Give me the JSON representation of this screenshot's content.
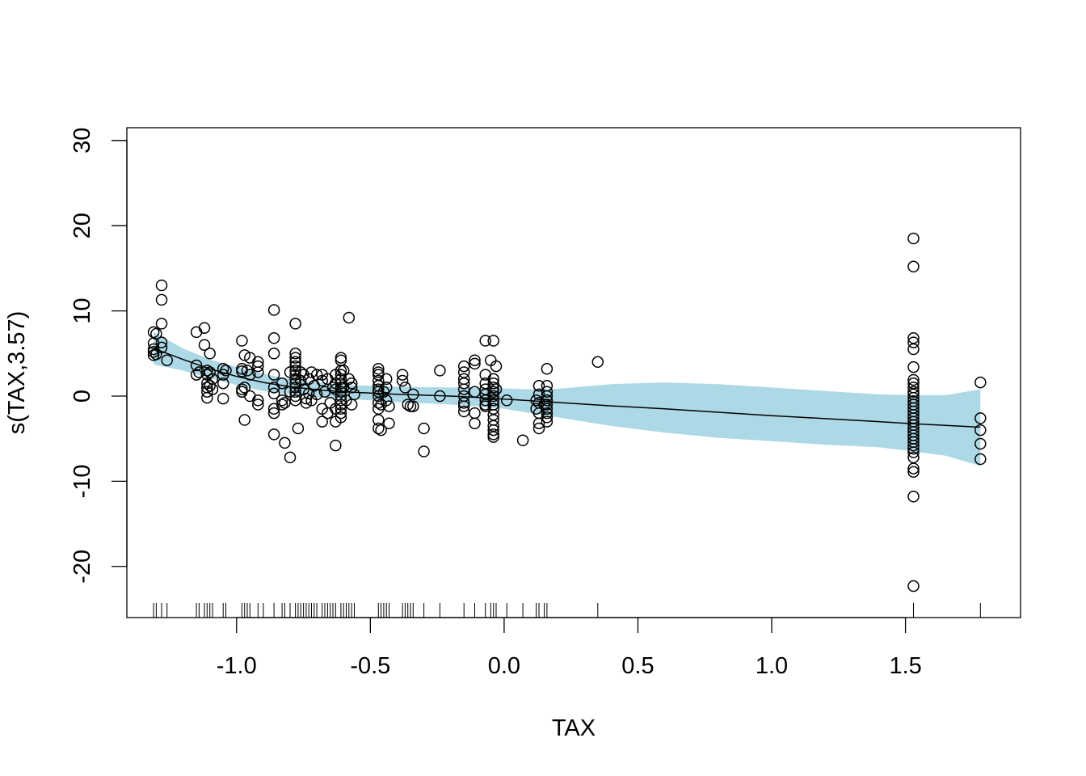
{
  "chart_data": {
    "type": "scatter",
    "title": "",
    "xlabel": "TAX",
    "ylabel": "s(TAX,3.57)",
    "xlim": [
      -1.41,
      1.93
    ],
    "ylim": [
      -26,
      31.5
    ],
    "xticks": [
      -1.0,
      -0.5,
      0.0,
      0.5,
      1.0,
      1.5
    ],
    "xtick_labels": [
      "-1.0",
      "-0.5",
      "0.0",
      "0.5",
      "1.0",
      "1.5"
    ],
    "yticks": [
      -20,
      -10,
      0,
      10,
      20,
      30
    ],
    "ytick_labels": [
      "-20",
      "-10",
      "0",
      "10",
      "20",
      "30"
    ],
    "grid": false,
    "colors": {
      "band": "#add8e6",
      "line": "#000000",
      "points": "#000000"
    },
    "smooth": {
      "x": [
        -1.31,
        -1.2,
        -1.1,
        -1.0,
        -0.9,
        -0.8,
        -0.7,
        -0.6,
        -0.5,
        -0.4,
        -0.3,
        -0.2,
        -0.1,
        0.0,
        0.1,
        0.2,
        0.4,
        0.6,
        0.8,
        1.0,
        1.2,
        1.4,
        1.53,
        1.65,
        1.78
      ],
      "fit": [
        5.6,
        4.3,
        3.2,
        2.3,
        1.6,
        1.1,
        0.75,
        0.5,
        0.35,
        0.22,
        0.1,
        0.0,
        -0.15,
        -0.35,
        -0.55,
        -0.75,
        -1.15,
        -1.5,
        -1.9,
        -2.3,
        -2.65,
        -3.0,
        -3.25,
        -3.45,
        -3.65
      ],
      "upper": [
        7.5,
        5.6,
        4.3,
        3.4,
        2.6,
        2.0,
        1.6,
        1.3,
        1.2,
        1.1,
        1.05,
        1.0,
        0.95,
        0.9,
        0.8,
        0.85,
        1.4,
        1.6,
        1.4,
        1.0,
        0.6,
        0.2,
        0.1,
        0.1,
        0.8
      ],
      "lower": [
        3.7,
        3.0,
        2.1,
        1.3,
        0.6,
        0.2,
        -0.1,
        -0.3,
        -0.5,
        -0.7,
        -0.85,
        -1.0,
        -1.2,
        -1.5,
        -2.0,
        -2.5,
        -3.5,
        -4.3,
        -4.9,
        -5.3,
        -5.7,
        -6.0,
        -6.5,
        -7.0,
        -8.2
      ]
    },
    "points": [
      [
        -1.31,
        5.5
      ],
      [
        -1.31,
        4.8
      ],
      [
        -1.31,
        5.2
      ],
      [
        -1.31,
        6.2
      ],
      [
        -1.31,
        7.5
      ],
      [
        -1.3,
        7.3
      ],
      [
        -1.3,
        4.9
      ],
      [
        -1.28,
        13.0
      ],
      [
        -1.28,
        11.3
      ],
      [
        -1.28,
        8.5
      ],
      [
        -1.28,
        6.3
      ],
      [
        -1.28,
        5.7
      ],
      [
        -1.26,
        4.2
      ],
      [
        -1.15,
        7.5
      ],
      [
        -1.15,
        3.6
      ],
      [
        -1.15,
        2.5
      ],
      [
        -1.14,
        2.8
      ],
      [
        -1.12,
        8.0
      ],
      [
        -1.12,
        6.0
      ],
      [
        -1.11,
        3.0
      ],
      [
        -1.11,
        2.5
      ],
      [
        -1.11,
        1.5
      ],
      [
        -1.11,
        1.0
      ],
      [
        -1.11,
        0.5
      ],
      [
        -1.11,
        -0.2
      ],
      [
        -1.1,
        5.0
      ],
      [
        -1.1,
        2.8
      ],
      [
        -1.1,
        1.2
      ],
      [
        -1.09,
        2.0
      ],
      [
        -1.09,
        0.8
      ],
      [
        -1.05,
        3.2
      ],
      [
        -1.05,
        2.5
      ],
      [
        -1.05,
        1.5
      ],
      [
        -1.05,
        -0.3
      ],
      [
        -1.04,
        3.0
      ],
      [
        -0.98,
        6.5
      ],
      [
        -0.98,
        3.2
      ],
      [
        -0.98,
        2.9
      ],
      [
        -0.98,
        0.5
      ],
      [
        -0.98,
        0.8
      ],
      [
        -0.97,
        4.8
      ],
      [
        -0.97,
        1.0
      ],
      [
        -0.97,
        -2.8
      ],
      [
        -0.96,
        3.0
      ],
      [
        -0.95,
        4.5
      ],
      [
        -0.95,
        2.5
      ],
      [
        -0.95,
        0.0
      ],
      [
        -0.92,
        4.0
      ],
      [
        -0.92,
        3.5
      ],
      [
        -0.92,
        2.8
      ],
      [
        -0.92,
        -0.5
      ],
      [
        -0.92,
        -1.0
      ],
      [
        -0.86,
        10.1
      ],
      [
        -0.86,
        6.8
      ],
      [
        -0.86,
        5.0
      ],
      [
        -0.86,
        2.5
      ],
      [
        -0.86,
        1.0
      ],
      [
        -0.86,
        0.3
      ],
      [
        -0.86,
        -1.5
      ],
      [
        -0.86,
        -2.0
      ],
      [
        -0.86,
        -4.5
      ],
      [
        -0.83,
        1.5
      ],
      [
        -0.83,
        -0.5
      ],
      [
        -0.83,
        -1.0
      ],
      [
        -0.82,
        -0.8
      ],
      [
        -0.82,
        -5.5
      ],
      [
        -0.8,
        -7.2
      ],
      [
        -0.8,
        2.8
      ],
      [
        -0.8,
        0.5
      ],
      [
        -0.78,
        8.5
      ],
      [
        -0.78,
        5.0
      ],
      [
        -0.78,
        4.5
      ],
      [
        -0.78,
        4.0
      ],
      [
        -0.78,
        3.5
      ],
      [
        -0.78,
        3.0
      ],
      [
        -0.78,
        2.5
      ],
      [
        -0.78,
        2.0
      ],
      [
        -0.78,
        1.5
      ],
      [
        -0.78,
        1.0
      ],
      [
        -0.78,
        0.5
      ],
      [
        -0.78,
        0.0
      ],
      [
        -0.78,
        -0.5
      ],
      [
        -0.77,
        -3.8
      ],
      [
        -0.76,
        2.8
      ],
      [
        -0.76,
        1.8
      ],
      [
        -0.75,
        2.5
      ],
      [
        -0.75,
        0.8
      ],
      [
        -0.74,
        -0.3
      ],
      [
        -0.74,
        -0.8
      ],
      [
        -0.73,
        2.0
      ],
      [
        -0.73,
        0.3
      ],
      [
        -0.72,
        -0.5
      ],
      [
        -0.72,
        2.8
      ],
      [
        -0.71,
        1.2
      ],
      [
        -0.7,
        0.2
      ],
      [
        -0.7,
        2.5
      ],
      [
        -0.68,
        2.5
      ],
      [
        -0.68,
        1.8
      ],
      [
        -0.68,
        -1.5
      ],
      [
        -0.68,
        -3.0
      ],
      [
        -0.67,
        0.5
      ],
      [
        -0.66,
        2.0
      ],
      [
        -0.66,
        -2.0
      ],
      [
        -0.65,
        -0.8
      ],
      [
        -0.64,
        1.0
      ],
      [
        -0.63,
        2.5
      ],
      [
        -0.63,
        1.5
      ],
      [
        -0.63,
        0.8
      ],
      [
        -0.63,
        -1.5
      ],
      [
        -0.63,
        -3.0
      ],
      [
        -0.63,
        -5.8
      ],
      [
        -0.61,
        4.5
      ],
      [
        -0.61,
        4.2
      ],
      [
        -0.61,
        3.0
      ],
      [
        -0.61,
        2.5
      ],
      [
        -0.61,
        2.0
      ],
      [
        -0.61,
        1.5
      ],
      [
        -0.61,
        1.0
      ],
      [
        -0.61,
        0.5
      ],
      [
        -0.61,
        0.0
      ],
      [
        -0.61,
        -0.5
      ],
      [
        -0.61,
        -1.0
      ],
      [
        -0.61,
        -1.5
      ],
      [
        -0.61,
        -2.0
      ],
      [
        -0.61,
        -2.5
      ],
      [
        -0.6,
        3.0
      ],
      [
        -0.6,
        1.0
      ],
      [
        -0.59,
        -0.5
      ],
      [
        -0.58,
        9.2
      ],
      [
        -0.58,
        2.0
      ],
      [
        -0.57,
        1.0
      ],
      [
        -0.57,
        -1.0
      ],
      [
        -0.57,
        1.5
      ],
      [
        -0.56,
        0.2
      ],
      [
        -0.47,
        3.2
      ],
      [
        -0.47,
        2.8
      ],
      [
        -0.47,
        2.5
      ],
      [
        -0.47,
        1.8
      ],
      [
        -0.47,
        1.2
      ],
      [
        -0.47,
        0.8
      ],
      [
        -0.47,
        0.5
      ],
      [
        -0.47,
        0.0
      ],
      [
        -0.47,
        -0.8
      ],
      [
        -0.47,
        -1.5
      ],
      [
        -0.47,
        -2.8
      ],
      [
        -0.47,
        -3.8
      ],
      [
        -0.46,
        -4.0
      ],
      [
        -0.46,
        -1.0
      ],
      [
        -0.45,
        0.5
      ],
      [
        -0.44,
        2.0
      ],
      [
        -0.44,
        1.0
      ],
      [
        -0.44,
        -0.5
      ],
      [
        -0.43,
        -1.2
      ],
      [
        -0.43,
        -3.2
      ],
      [
        -0.38,
        2.5
      ],
      [
        -0.38,
        1.8
      ],
      [
        -0.37,
        1.0
      ],
      [
        -0.36,
        -1.0
      ],
      [
        -0.35,
        -1.2
      ],
      [
        -0.34,
        0.2
      ],
      [
        -0.34,
        -1.2
      ],
      [
        -0.3,
        -3.8
      ],
      [
        -0.3,
        -6.5
      ],
      [
        -0.24,
        3.0
      ],
      [
        -0.24,
        0.0
      ],
      [
        -0.15,
        3.5
      ],
      [
        -0.15,
        2.8
      ],
      [
        -0.15,
        2.0
      ],
      [
        -0.15,
        1.5
      ],
      [
        -0.15,
        0.8
      ],
      [
        -0.15,
        0.0
      ],
      [
        -0.15,
        -0.8
      ],
      [
        -0.15,
        -1.2
      ],
      [
        -0.15,
        -1.8
      ],
      [
        -0.11,
        4.2
      ],
      [
        -0.11,
        3.8
      ],
      [
        -0.11,
        0.5
      ],
      [
        -0.11,
        -2.0
      ],
      [
        -0.11,
        -3.2
      ],
      [
        -0.07,
        6.5
      ],
      [
        -0.07,
        2.5
      ],
      [
        -0.07,
        1.5
      ],
      [
        -0.07,
        0.8
      ],
      [
        -0.07,
        0.2
      ],
      [
        -0.07,
        -0.5
      ],
      [
        -0.07,
        -1.0
      ],
      [
        -0.07,
        -1.2
      ],
      [
        -0.05,
        4.2
      ],
      [
        -0.04,
        6.5
      ],
      [
        -0.04,
        2.0
      ],
      [
        -0.04,
        1.5
      ],
      [
        -0.04,
        1.0
      ],
      [
        -0.04,
        0.5
      ],
      [
        -0.04,
        0.0
      ],
      [
        -0.04,
        -0.5
      ],
      [
        -0.04,
        -1.0
      ],
      [
        -0.04,
        -1.5
      ],
      [
        -0.04,
        -2.2
      ],
      [
        -0.04,
        -2.8
      ],
      [
        -0.04,
        -3.5
      ],
      [
        -0.04,
        -4.0
      ],
      [
        -0.04,
        -4.5
      ],
      [
        -0.04,
        -4.8
      ],
      [
        -0.03,
        3.5
      ],
      [
        -0.03,
        0.8
      ],
      [
        0.01,
        -0.5
      ],
      [
        0.07,
        -5.2
      ],
      [
        0.12,
        -0.5
      ],
      [
        0.12,
        -1.5
      ],
      [
        0.13,
        1.2
      ],
      [
        0.13,
        0.2
      ],
      [
        0.13,
        -0.8
      ],
      [
        0.13,
        -2.0
      ],
      [
        0.13,
        -3.2
      ],
      [
        0.13,
        -3.8
      ],
      [
        0.15,
        -1.0
      ],
      [
        0.16,
        3.2
      ],
      [
        0.16,
        1.2
      ],
      [
        0.16,
        0.5
      ],
      [
        0.16,
        0.0
      ],
      [
        0.16,
        -0.5
      ],
      [
        0.16,
        -1.0
      ],
      [
        0.16,
        -1.5
      ],
      [
        0.16,
        -2.0
      ],
      [
        0.16,
        -2.5
      ],
      [
        0.16,
        -3.0
      ],
      [
        0.35,
        4.0
      ],
      [
        1.53,
        18.5
      ],
      [
        1.53,
        15.2
      ],
      [
        1.53,
        6.8
      ],
      [
        1.53,
        6.3
      ],
      [
        1.53,
        5.5
      ],
      [
        1.53,
        3.4
      ],
      [
        1.53,
        1.9
      ],
      [
        1.53,
        1.5
      ],
      [
        1.53,
        1.0
      ],
      [
        1.53,
        0.5
      ],
      [
        1.53,
        0.2
      ],
      [
        1.53,
        -0.2
      ],
      [
        1.53,
        -0.6
      ],
      [
        1.53,
        -1.0
      ],
      [
        1.53,
        -1.4
      ],
      [
        1.53,
        -1.8
      ],
      [
        1.53,
        -2.2
      ],
      [
        1.53,
        -2.6
      ],
      [
        1.53,
        -3.0
      ],
      [
        1.53,
        -3.4
      ],
      [
        1.53,
        -3.8
      ],
      [
        1.53,
        -4.2
      ],
      [
        1.53,
        -4.6
      ],
      [
        1.53,
        -5.0
      ],
      [
        1.53,
        -5.4
      ],
      [
        1.53,
        -5.8
      ],
      [
        1.53,
        -6.2
      ],
      [
        1.53,
        -6.6
      ],
      [
        1.53,
        -7.2
      ],
      [
        1.53,
        -8.5
      ],
      [
        1.53,
        -8.9
      ],
      [
        1.53,
        -11.8
      ],
      [
        1.53,
        -22.3
      ],
      [
        1.78,
        1.6
      ],
      [
        1.78,
        -2.6
      ],
      [
        1.78,
        -4.0
      ],
      [
        1.78,
        -5.6
      ],
      [
        1.78,
        -7.4
      ]
    ],
    "rug": [
      -1.31,
      -1.3,
      -1.28,
      -1.26,
      -1.15,
      -1.14,
      -1.12,
      -1.11,
      -1.1,
      -1.09,
      -1.05,
      -1.04,
      -0.98,
      -0.97,
      -0.96,
      -0.95,
      -0.92,
      -0.9,
      -0.86,
      -0.83,
      -0.82,
      -0.8,
      -0.78,
      -0.77,
      -0.76,
      -0.75,
      -0.74,
      -0.73,
      -0.72,
      -0.71,
      -0.7,
      -0.68,
      -0.67,
      -0.66,
      -0.65,
      -0.64,
      -0.63,
      -0.61,
      -0.6,
      -0.59,
      -0.58,
      -0.57,
      -0.56,
      -0.47,
      -0.46,
      -0.45,
      -0.44,
      -0.43,
      -0.38,
      -0.37,
      -0.36,
      -0.35,
      -0.34,
      -0.3,
      -0.24,
      -0.15,
      -0.11,
      -0.07,
      -0.05,
      -0.04,
      -0.03,
      0.01,
      0.07,
      0.12,
      0.13,
      0.15,
      0.16,
      0.35,
      1.53,
      1.78
    ]
  }
}
